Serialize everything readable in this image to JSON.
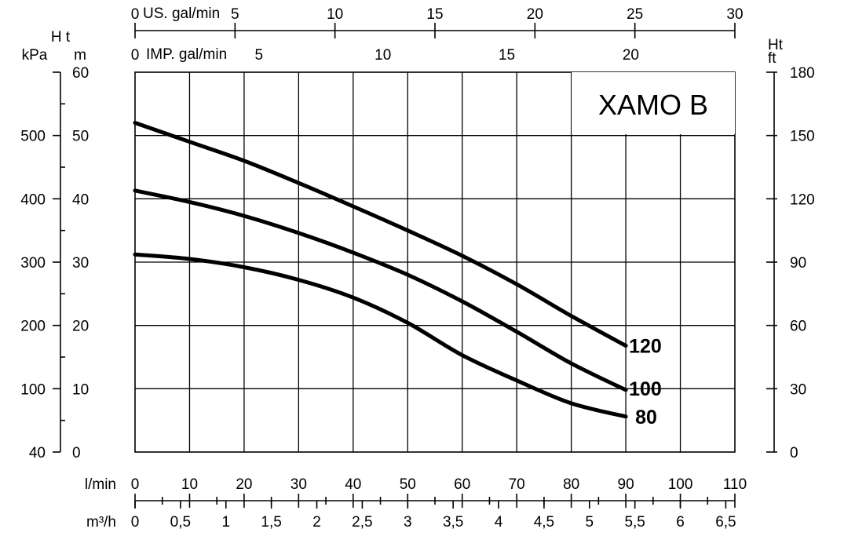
{
  "chart_data": {
    "type": "line",
    "title": "XAMO B",
    "grid": true,
    "x": [
      0,
      10,
      20,
      30,
      40,
      50,
      60,
      70,
      80,
      90
    ],
    "series": [
      {
        "name": "120",
        "values": [
          52,
          49,
          46,
          42.5,
          38.8,
          35,
          31,
          26.5,
          21.5,
          16.8
        ]
      },
      {
        "name": "100",
        "values": [
          41.3,
          39.5,
          37.3,
          34.6,
          31.5,
          28,
          23.8,
          19,
          14,
          9.8
        ]
      },
      {
        "name": "80",
        "values": [
          31.2,
          30.5,
          29.2,
          27.2,
          24.4,
          20.4,
          15.3,
          11.3,
          7.7,
          5.6
        ]
      }
    ],
    "axes": {
      "x_lmin": {
        "label": "l/min",
        "range": [
          0,
          110
        ],
        "ticks": [
          "0",
          "10",
          "20",
          "30",
          "40",
          "50",
          "60",
          "70",
          "80",
          "90",
          "100",
          "110"
        ]
      },
      "x_m3h": {
        "label": "m³/h",
        "range": [
          0,
          6.6
        ],
        "ticks": [
          "0",
          "0,5",
          "1",
          "1,5",
          "2",
          "2,5",
          "3",
          "3,5",
          "4",
          "4,5",
          "5",
          "5,5",
          "6",
          "6,5"
        ]
      },
      "x_usgal": {
        "label": "US. gal/min",
        "range": [
          0,
          30
        ],
        "ticks": [
          "0",
          "5",
          "10",
          "15",
          "20",
          "25",
          "30"
        ]
      },
      "x_impgal": {
        "label": "IMP. gal/min",
        "range": [
          0,
          24.2
        ],
        "ticks": [
          "0",
          "5",
          "10",
          "15",
          "20"
        ]
      },
      "y_m": {
        "label_top": "H t",
        "label": "m",
        "range": [
          0,
          60
        ],
        "ticks": [
          "0",
          "10",
          "20",
          "30",
          "40",
          "50",
          "60"
        ]
      },
      "y_kpa": {
        "label": "kPa",
        "ticks": [
          "40",
          "100",
          "200",
          "300",
          "400",
          "500"
        ]
      },
      "y_ft": {
        "label_top": "Ht",
        "label": "ft",
        "range": [
          0,
          180
        ],
        "ticks": [
          "0",
          "30",
          "60",
          "90",
          "120",
          "150",
          "180"
        ]
      }
    }
  }
}
